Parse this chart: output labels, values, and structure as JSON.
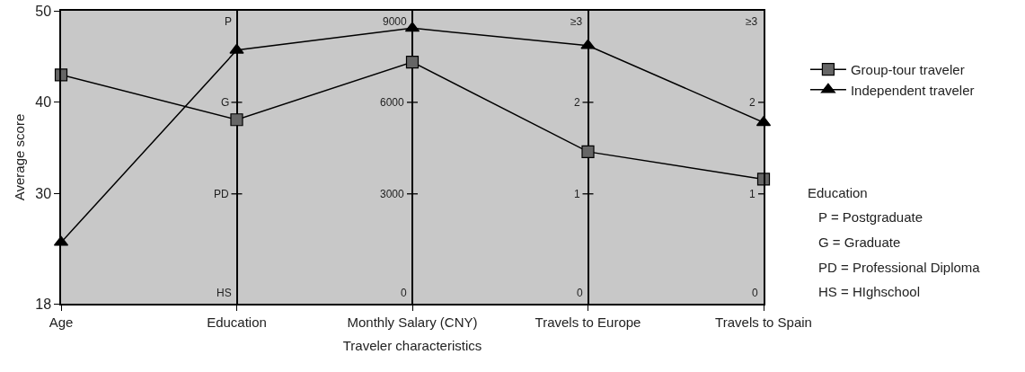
{
  "chart_data": {
    "type": "line",
    "xlabel": "Traveler characteristics",
    "ylabel": "Average score",
    "categories": [
      "Age",
      "Education",
      "Monthly Salary (CNY)",
      "Travels to Europe",
      "Travels to Spain"
    ],
    "series": [
      {
        "name": "Group-tour traveler",
        "color": "#666666",
        "marker": "square",
        "values": [
          43.0,
          38.1,
          44.4,
          34.6,
          31.6
        ]
      },
      {
        "name": "Independent traveler",
        "color": "#000000",
        "marker": "triangle",
        "values": [
          24.7,
          45.7,
          48.1,
          46.2,
          37.8
        ]
      }
    ],
    "ylim": [
      18,
      50
    ],
    "yticks": [
      18,
      30,
      40,
      50
    ],
    "grid": "x",
    "legend": "top right",
    "line_style": "solid",
    "annotations": [
      "P",
      "G",
      "PD",
      "HS",
      "9000",
      "6000",
      "3000",
      "0",
      "≥3",
      "2",
      "1",
      "0",
      "≥3",
      "2",
      "1",
      "0",
      "Education",
      "P = Postgraduate",
      "G = Graduate",
      "PD = Professional Diploma",
      "HS = HIghschool"
    ]
  }
}
